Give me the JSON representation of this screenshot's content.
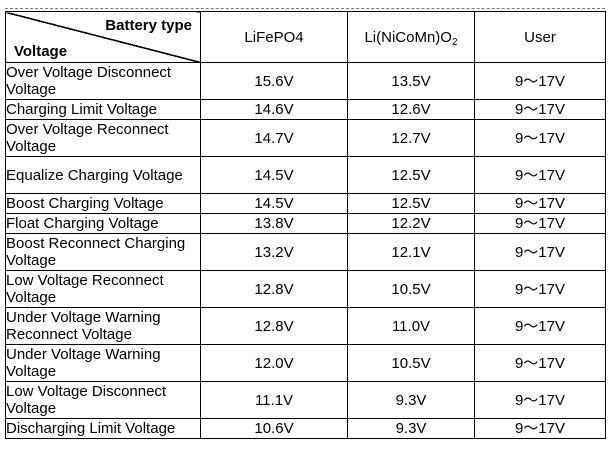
{
  "table": {
    "corner_top": "Battery type",
    "corner_bottom": "Voltage",
    "columns": [
      {
        "label": "LiFePO4",
        "sub": "",
        "tail": ""
      },
      {
        "label": "Li(NiCoMn)O",
        "sub": "2",
        "tail": ""
      },
      {
        "label": "User",
        "sub": "",
        "tail": ""
      }
    ],
    "rows": [
      {
        "param": "Over Voltage Disconnect Voltage",
        "lines": 2,
        "values": [
          "15.6V",
          "13.5V",
          "9～17V"
        ]
      },
      {
        "param": "Charging Limit Voltage",
        "lines": 1,
        "values": [
          "14.6V",
          "12.6V",
          "9～17V"
        ]
      },
      {
        "param": "Over Voltage Reconnect Voltage",
        "lines": 2,
        "values": [
          "14.7V",
          "12.7V",
          "9～17V"
        ]
      },
      {
        "param": "Equalize Charging Voltage",
        "lines": 2,
        "values": [
          "14.5V",
          "12.5V",
          "9～17V"
        ]
      },
      {
        "param": "Boost Charging Voltage",
        "lines": 1,
        "values": [
          "14.5V",
          "12.5V",
          "9～17V"
        ]
      },
      {
        "param": "Float Charging Voltage",
        "lines": 1,
        "values": [
          "13.8V",
          "12.2V",
          "9～17V"
        ]
      },
      {
        "param": "Boost Reconnect Charging Voltage",
        "lines": 2,
        "values": [
          "13.2V",
          "12.1V",
          "9～17V"
        ]
      },
      {
        "param": "Low Voltage Reconnect Voltage",
        "lines": 2,
        "values": [
          "12.8V",
          "10.5V",
          "9～17V"
        ]
      },
      {
        "param": "Under Voltage Warning Reconnect Voltage",
        "lines": 2,
        "values": [
          "12.8V",
          "11.0V",
          "9～17V"
        ]
      },
      {
        "param": "Under Voltage Warning Voltage",
        "lines": 2,
        "values": [
          "12.0V",
          "10.5V",
          "9～17V"
        ]
      },
      {
        "param": "Low Voltage Disconnect Voltage",
        "lines": 2,
        "values": [
          "11.1V",
          "9.3V",
          "9～17V"
        ]
      },
      {
        "param": "Discharging Limit Voltage",
        "lines": 1,
        "values": [
          "10.6V",
          "9.3V",
          "9～17V"
        ]
      }
    ]
  }
}
